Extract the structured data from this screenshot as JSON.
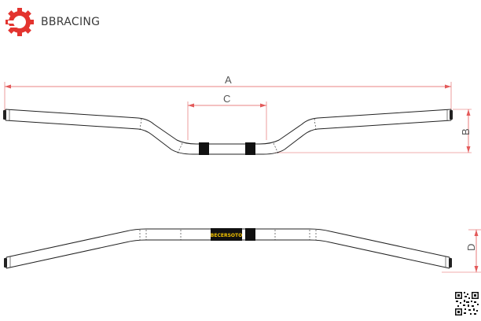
{
  "brand": {
    "name": "BBRACING",
    "accent_color": "#e3342f",
    "logo_icon": "gear-logo-icon"
  },
  "dimensions": {
    "width_label": "A",
    "center_width_label": "C",
    "rise_label": "B",
    "pullback_label": "D"
  },
  "clamp_marking": "BECERSOTO",
  "colors": {
    "dimension_line": "#e35a5a",
    "outline": "#222222",
    "clamp": "#111111"
  },
  "qr_icon": "qr-code-icon"
}
